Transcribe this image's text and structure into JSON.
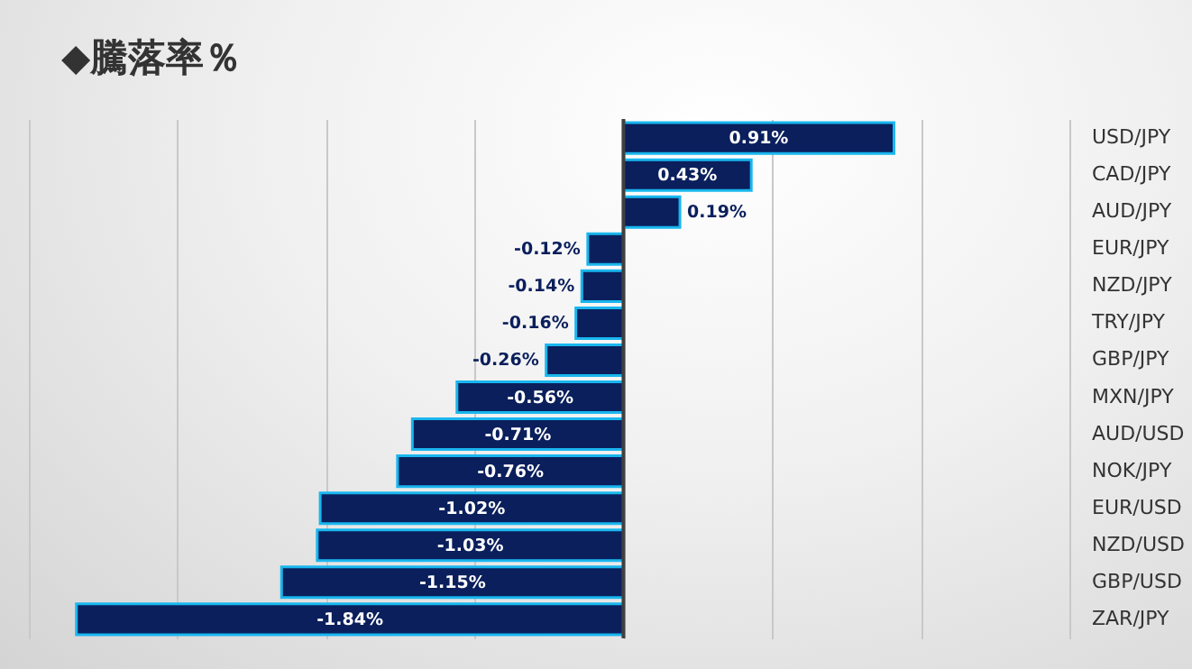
{
  "chart_data": {
    "type": "bar",
    "orientation": "horizontal",
    "title": "◆騰落率％",
    "categories": [
      "USD/JPY",
      "CAD/JPY",
      "AUD/JPY",
      "EUR/JPY",
      "NZD/JPY",
      "TRY/JPY",
      "GBP/JPY",
      "MXN/JPY",
      "AUD/USD",
      "NOK/JPY",
      "EUR/USD",
      "NZD/USD",
      "GBP/USD",
      "ZAR/JPY"
    ],
    "values": [
      0.91,
      0.43,
      0.19,
      -0.12,
      -0.14,
      -0.16,
      -0.26,
      -0.56,
      -0.71,
      -0.76,
      -1.02,
      -1.03,
      -1.15,
      -1.84
    ],
    "value_labels": [
      "0.91%",
      "0.43%",
      "0.19%",
      "-0.12%",
      "-0.14%",
      "-0.16%",
      "-0.26%",
      "-0.56%",
      "-0.71%",
      "-0.76%",
      "-1.02%",
      "-1.03%",
      "-1.15%",
      "-1.84%"
    ],
    "color": "#0a1f5c",
    "xlim": [
      -2,
      1.5
    ],
    "xticks": [
      {
        "value": -2,
        "label": null
      },
      {
        "value": -1.5,
        "label": null
      },
      {
        "value": -1,
        "label": null
      },
      {
        "value": -0.5,
        "label": null
      },
      {
        "value": 0,
        "label": null
      },
      {
        "value": 0.5,
        "label": null
      },
      {
        "value": 1,
        "label": null
      },
      {
        "value": 1.5,
        "label": null
      }
    ],
    "tick_labels": "y",
    "grid": "x"
  }
}
